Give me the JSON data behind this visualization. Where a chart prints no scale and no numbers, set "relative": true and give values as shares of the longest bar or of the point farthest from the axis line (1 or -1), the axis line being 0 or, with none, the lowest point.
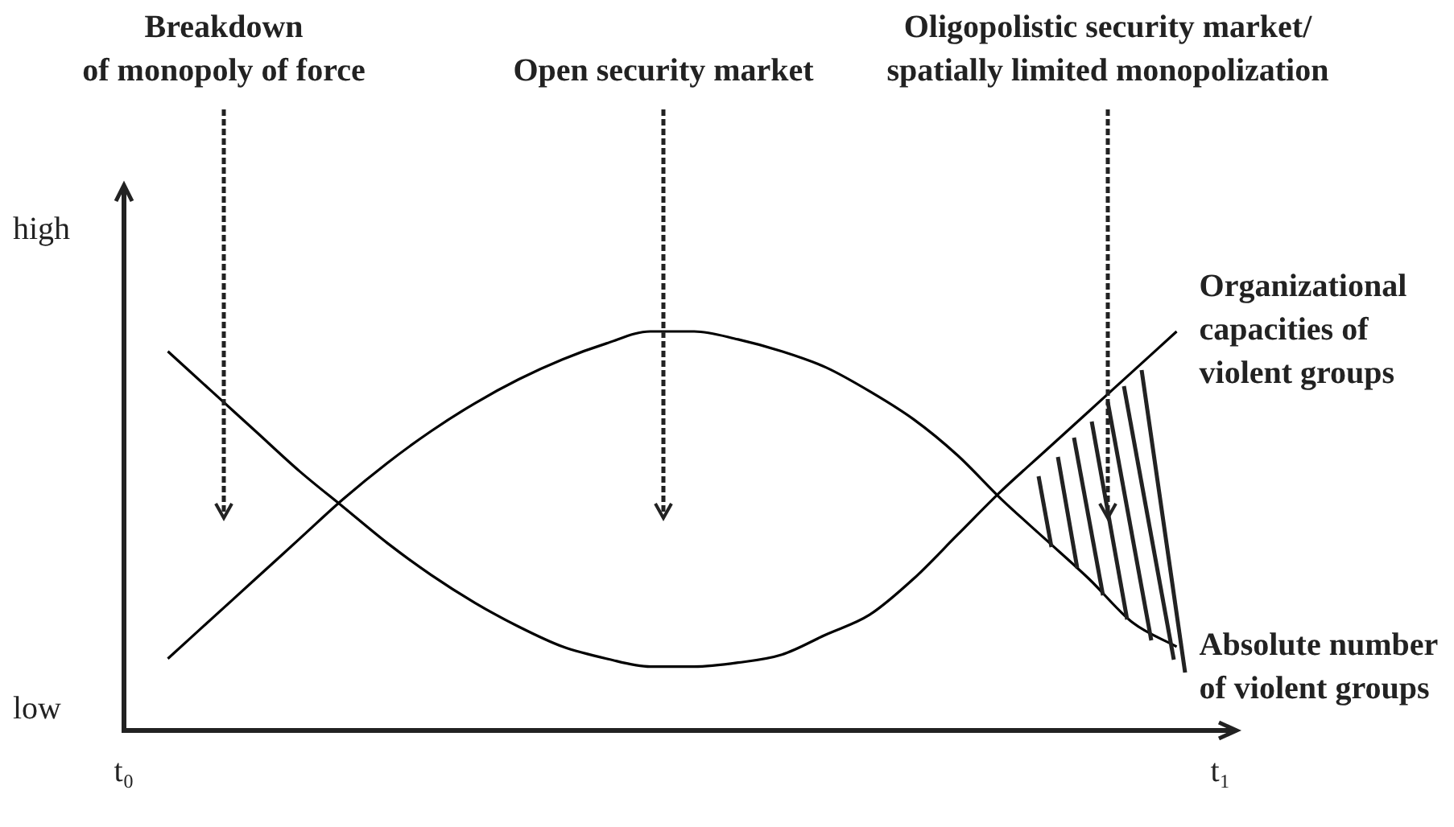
{
  "chart_data": {
    "type": "line",
    "relative": true,
    "grid": false,
    "marker": "none",
    "categories": [
      "t₀",
      null,
      null,
      null,
      null,
      null,
      null,
      null,
      null,
      null,
      null,
      null,
      null,
      null,
      null,
      null,
      null,
      null,
      null,
      null,
      null,
      null,
      null,
      null,
      null,
      "t₁"
    ],
    "series": [
      {
        "name": "Organizational capacities of violent groups",
        "color": "#000000",
        "values": [
          null,
          0.95,
          0.85,
          0.75,
          0.65,
          0.56,
          0.47,
          0.39,
          0.32,
          0.26,
          0.21,
          0.18,
          0.16,
          0.16,
          0.17,
          0.19,
          0.24,
          0.29,
          0.38,
          0.49,
          0.6,
          0.7,
          0.8,
          0.9,
          1.0,
          null
        ]
      },
      {
        "name": "Absolute number of violent groups",
        "color": "#000000",
        "values": [
          null,
          0.18,
          0.28,
          0.38,
          0.48,
          0.58,
          0.67,
          0.75,
          0.82,
          0.88,
          0.93,
          0.97,
          1.0,
          1.0,
          0.98,
          0.95,
          0.91,
          0.85,
          0.78,
          0.69,
          0.58,
          0.48,
          0.38,
          0.27,
          0.21,
          null
        ]
      }
    ],
    "annotations": [
      "Breakdown\nof monopoly of force",
      "Open security market",
      "Oligopolistic security market/\nspatially limited monopolization",
      "high",
      "low"
    ]
  }
}
